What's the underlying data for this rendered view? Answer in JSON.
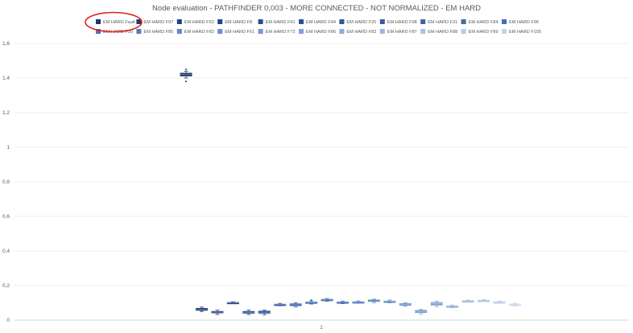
{
  "chart_data": {
    "type": "box",
    "title": "Node evaluation - PATHFINDER 0,003 - MORE CONNECTED - NOT NORMALIZED - EM HARD",
    "xlabel": "",
    "ylabel": "",
    "categories": [
      "1"
    ],
    "ylim": [
      0,
      1.6
    ],
    "yticks": [
      "0",
      "0,2",
      "0,4",
      "0,6",
      "0,8",
      "1",
      "1,2",
      "1,4",
      "1,6"
    ],
    "grid": true,
    "legend_position": "top",
    "annotation": "red ellipse around legend entry EM HARD Fault",
    "series": [
      {
        "name": "EM HARD Fault",
        "color": "#1f3864",
        "q1": 1.41,
        "q3": 1.43,
        "median": 1.42,
        "whisker_low": 1.4,
        "whisker_high": 1.44,
        "outliers": [
          1.38,
          1.45
        ]
      },
      {
        "name": "EM HARD F97",
        "color": "#1f3a73",
        "q1": 0.055,
        "q3": 0.07,
        "median": 0.063,
        "whisker_low": 0.05,
        "whisker_high": 0.075,
        "outliers": []
      },
      {
        "name": "EM HARD F53",
        "color": "#22407d",
        "q1": 0.04,
        "q3": 0.052,
        "median": 0.046,
        "whisker_low": 0.033,
        "whisker_high": 0.058,
        "outliers": []
      },
      {
        "name": "EM HARD F8",
        "color": "#254683",
        "q1": 0.097,
        "q3": 0.104,
        "median": 0.1,
        "whisker_low": 0.095,
        "whisker_high": 0.106,
        "outliers": []
      },
      {
        "name": "EM HARD F41",
        "color": "#294c8b",
        "q1": 0.038,
        "q3": 0.052,
        "median": 0.045,
        "whisker_low": 0.032,
        "whisker_high": 0.058,
        "outliers": []
      },
      {
        "name": "EM HARD F44",
        "color": "#2c5192",
        "q1": 0.038,
        "q3": 0.054,
        "median": 0.046,
        "whisker_low": 0.03,
        "whisker_high": 0.058,
        "outliers": []
      },
      {
        "name": "EM HARD F20",
        "color": "#30579a",
        "q1": 0.086,
        "q3": 0.094,
        "median": 0.09,
        "whisker_low": 0.083,
        "whisker_high": 0.097,
        "outliers": []
      },
      {
        "name": "EM HARD F98",
        "color": "#345da1",
        "q1": 0.082,
        "q3": 0.096,
        "median": 0.089,
        "whisker_low": 0.077,
        "whisker_high": 0.1,
        "outliers": []
      },
      {
        "name": "EM HARD F31",
        "color": "#3963a8",
        "q1": 0.097,
        "q3": 0.106,
        "median": 0.1,
        "whisker_low": 0.093,
        "whisker_high": 0.112,
        "outliers": [
          0.116
        ]
      },
      {
        "name": "EM HARD F84",
        "color": "#3e69ae",
        "q1": 0.112,
        "q3": 0.122,
        "median": 0.117,
        "whisker_low": 0.109,
        "whisker_high": 0.125,
        "outliers": []
      },
      {
        "name": "EM HARD F96",
        "color": "#446fb3",
        "q1": 0.099,
        "q3": 0.107,
        "median": 0.103,
        "whisker_low": 0.095,
        "whisker_high": 0.11,
        "outliers": []
      },
      {
        "name": "EM HARD F39",
        "color": "#4a76b8",
        "q1": 0.101,
        "q3": 0.108,
        "median": 0.104,
        "whisker_low": 0.098,
        "whisker_high": 0.111,
        "outliers": []
      },
      {
        "name": "EM HARD F85",
        "color": "#557dbd",
        "q1": 0.106,
        "q3": 0.118,
        "median": 0.111,
        "whisker_low": 0.102,
        "whisker_high": 0.121,
        "outliers": []
      },
      {
        "name": "EM HARD F83",
        "color": "#5f86c2",
        "q1": 0.104,
        "q3": 0.112,
        "median": 0.108,
        "whisker_low": 0.1,
        "whisker_high": 0.116,
        "outliers": []
      },
      {
        "name": "EM HARD F61",
        "color": "#6a8ec7",
        "q1": 0.084,
        "q3": 0.097,
        "median": 0.09,
        "whisker_low": 0.08,
        "whisker_high": 0.1,
        "outliers": []
      },
      {
        "name": "EM HARD F72",
        "color": "#7897cc",
        "q1": 0.042,
        "q3": 0.058,
        "median": 0.05,
        "whisker_low": 0.036,
        "whisker_high": 0.062,
        "outliers": []
      },
      {
        "name": "EM HARD F86",
        "color": "#85a1d1",
        "q1": 0.085,
        "q3": 0.104,
        "median": 0.095,
        "whisker_low": 0.078,
        "whisker_high": 0.11,
        "outliers": []
      },
      {
        "name": "EM HARD F82",
        "color": "#92abd6",
        "q1": 0.076,
        "q3": 0.084,
        "median": 0.08,
        "whisker_low": 0.072,
        "whisker_high": 0.087,
        "outliers": []
      },
      {
        "name": "EM HARD F87",
        "color": "#9fb5db",
        "q1": 0.108,
        "q3": 0.114,
        "median": 0.111,
        "whisker_low": 0.106,
        "whisker_high": 0.116,
        "outliers": []
      },
      {
        "name": "EM HARD F88",
        "color": "#abbfe0",
        "q1": 0.111,
        "q3": 0.117,
        "median": 0.114,
        "whisker_low": 0.109,
        "whisker_high": 0.119,
        "outliers": []
      },
      {
        "name": "EM HARD F89",
        "color": "#b8c9e5",
        "q1": 0.101,
        "q3": 0.108,
        "median": 0.104,
        "whisker_low": 0.098,
        "whisker_high": 0.111,
        "outliers": []
      },
      {
        "name": "EM HARD F105",
        "color": "#c5d3ea",
        "q1": 0.086,
        "q3": 0.095,
        "median": 0.09,
        "whisker_low": 0.082,
        "whisker_high": 0.098,
        "outliers": []
      }
    ]
  }
}
